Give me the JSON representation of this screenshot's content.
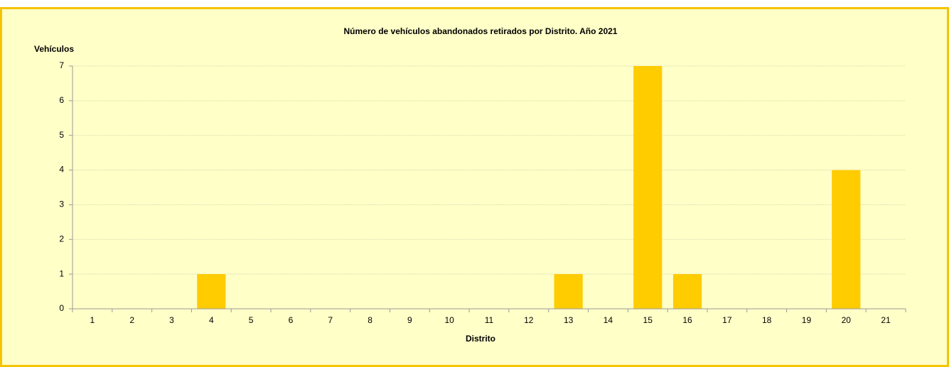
{
  "chart_data": {
    "type": "bar",
    "title": "Número de vehículos abandonados retirados por Distrito. Año 2021",
    "y_label": "Vehículos",
    "x_label": "Distrito",
    "categories": [
      "1",
      "2",
      "3",
      "4",
      "5",
      "6",
      "7",
      "8",
      "9",
      "10",
      "11",
      "12",
      "13",
      "14",
      "15",
      "16",
      "17",
      "18",
      "19",
      "20",
      "21"
    ],
    "values": [
      0,
      0,
      0,
      1,
      0,
      0,
      0,
      0,
      0,
      0,
      0,
      0,
      1,
      0,
      7,
      1,
      0,
      0,
      0,
      4,
      0
    ],
    "color": "#ffcc00",
    "ylim": [
      0,
      7
    ],
    "yticks": [
      0,
      1,
      2,
      3,
      4,
      5,
      6,
      7
    ],
    "grid": true
  }
}
